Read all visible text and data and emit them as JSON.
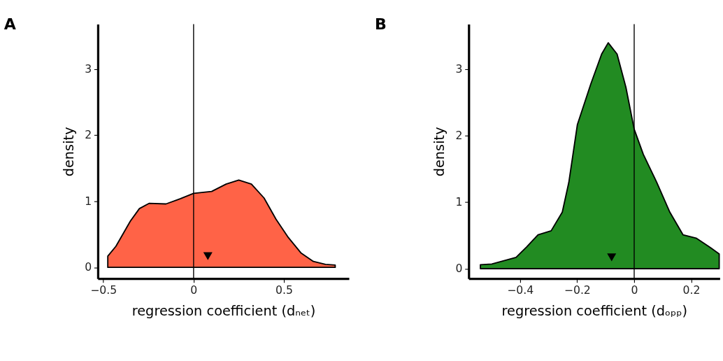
{
  "chart_data": [
    {
      "type": "area",
      "title": "A",
      "xlabel": "regression coefficient (dₙₑₜ)",
      "ylabel": "density",
      "xlim": [
        -0.53,
        0.86
      ],
      "xticks": [
        {
          "value": -0.5,
          "label": "−0.5"
        },
        0,
        0.5
      ],
      "ylim": [
        -0.17,
        3.68
      ],
      "yticks": [
        0,
        1,
        2,
        3
      ],
      "grid": false,
      "ref_lines": [
        {
          "axis": "x",
          "value": 0,
          "color": "#000000"
        }
      ],
      "series": [
        {
          "color": "#ff6347",
          "x": [
            -0.475,
            -0.475,
            -0.43,
            -0.35,
            -0.3,
            -0.245,
            -0.153,
            -0.072,
            0.0,
            0.1,
            0.18,
            0.25,
            0.32,
            0.39,
            0.456,
            0.525,
            0.594,
            0.663,
            0.73,
            0.784
          ],
          "values": [
            0,
            0.17,
            0.32,
            0.7,
            0.89,
            0.97,
            0.96,
            1.04,
            1.12,
            1.15,
            1.26,
            1.32,
            1.26,
            1.05,
            0.73,
            0.45,
            0.22,
            0.09,
            0.045,
            0.035
          ]
        },
        {
          "type": "scatter",
          "marker": "triangle",
          "color": "#000000",
          "x": [
            0.079
          ],
          "values": [
            0.17
          ]
        }
      ]
    },
    {
      "type": "area",
      "title": "B",
      "xlabel": "regression coefficient (dₒₚₚ)",
      "ylabel": "density",
      "xlim": [
        -0.58,
        0.3
      ],
      "xticks": [
        {
          "value": -0.4,
          "label": "−0.4"
        },
        {
          "value": -0.2,
          "label": "−0.2"
        },
        0,
        0.2
      ],
      "ylim": [
        -0.15,
        3.68
      ],
      "yticks": [
        0,
        1,
        2,
        3
      ],
      "grid": false,
      "ref_lines": [
        {
          "axis": "x",
          "value": 0,
          "color": "#000000"
        }
      ],
      "series": [
        {
          "color": "#228b22",
          "x": [
            -0.539,
            -0.539,
            -0.499,
            -0.414,
            -0.376,
            -0.337,
            -0.291,
            -0.252,
            -0.229,
            -0.199,
            -0.152,
            -0.114,
            -0.091,
            -0.06,
            -0.029,
            0.0,
            0.032,
            0.079,
            0.125,
            0.171,
            0.217,
            0.263,
            0.298
          ],
          "values": [
            0,
            0.06,
            0.07,
            0.17,
            0.33,
            0.51,
            0.57,
            0.85,
            1.3,
            2.17,
            2.78,
            3.23,
            3.4,
            3.23,
            2.73,
            2.1,
            1.72,
            1.3,
            0.85,
            0.51,
            0.46,
            0.33,
            0.22
          ]
        },
        {
          "type": "scatter",
          "marker": "triangle",
          "color": "#000000",
          "x": [
            -0.079
          ],
          "values": [
            0.17
          ]
        }
      ]
    }
  ]
}
